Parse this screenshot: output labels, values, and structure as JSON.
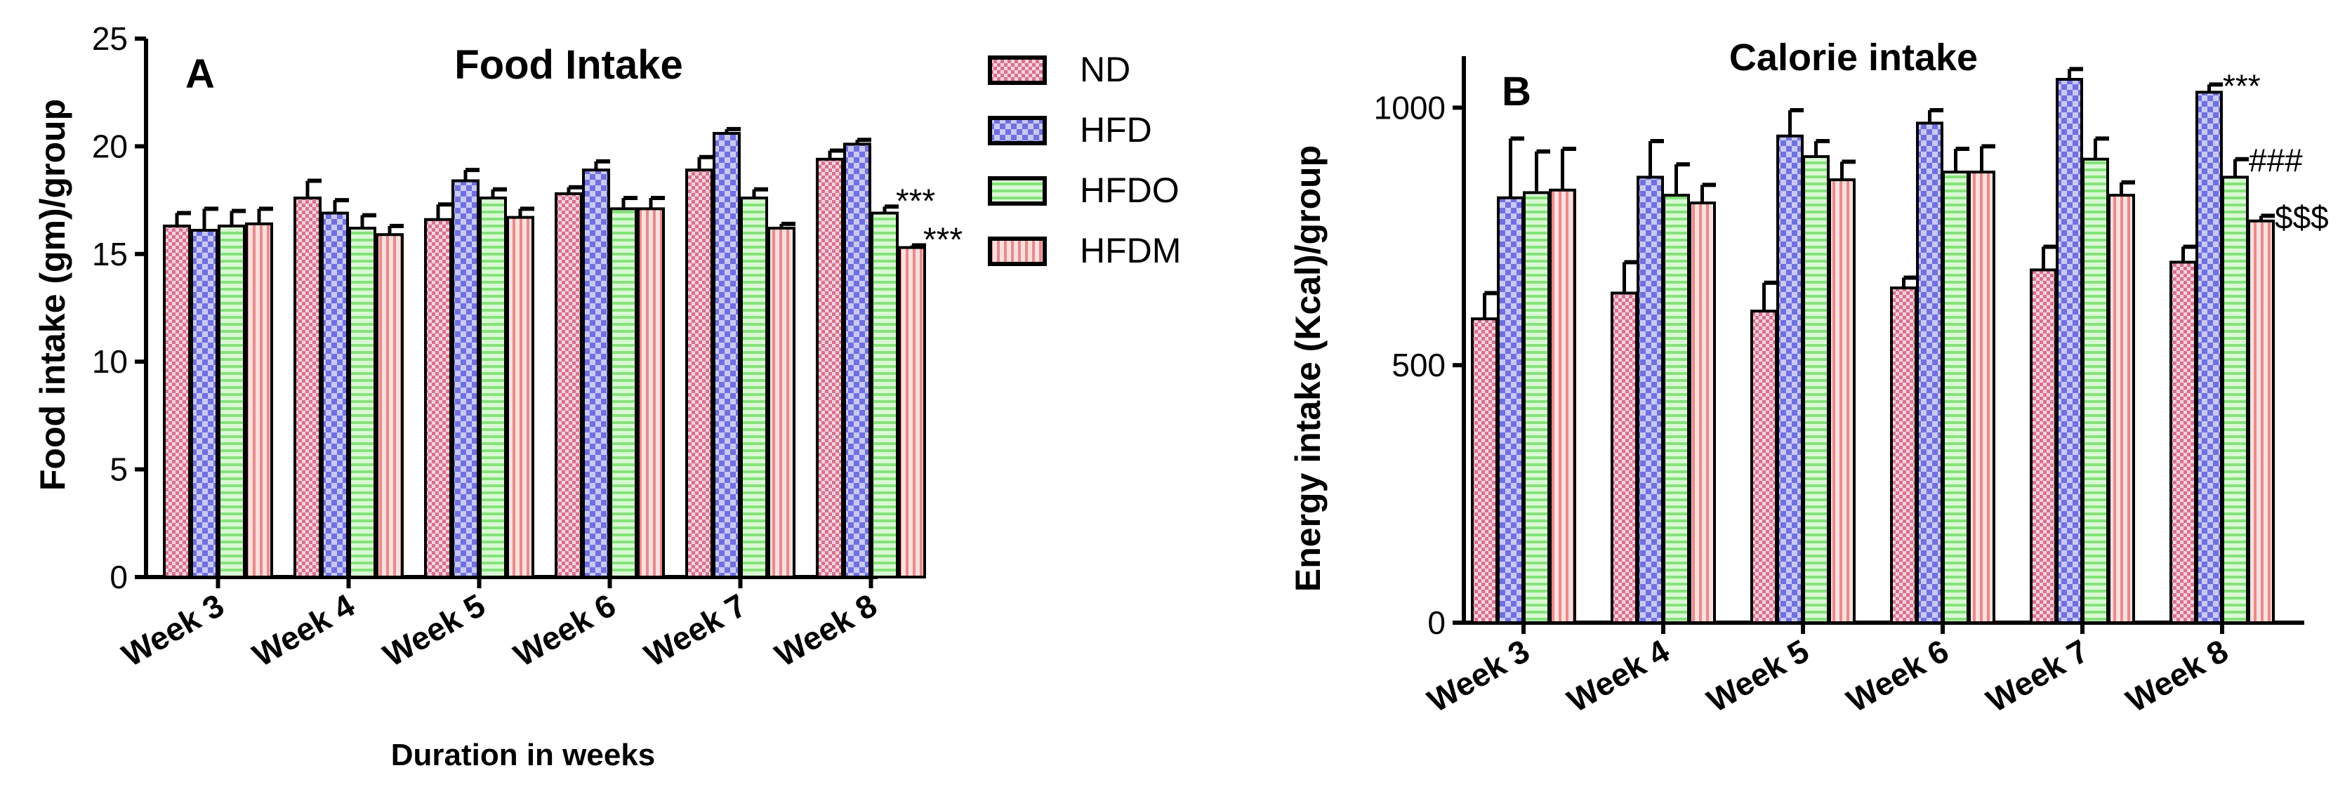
{
  "legend": [
    {
      "name": "ND",
      "pattern": "pat-checker"
    },
    {
      "name": "HFD",
      "pattern": "pat-check-blue"
    },
    {
      "name": "HFDO",
      "pattern": "pat-hstripe"
    },
    {
      "name": "HFDM",
      "pattern": "pat-vstripe"
    }
  ],
  "colors": {
    "ND": "#e8a0b4",
    "HFD": "#8c8cf0",
    "HFDO": "#aaf0a0",
    "HFDM": "#f0a0a0"
  },
  "chart_data": [
    {
      "type": "bar",
      "panel_label": "A",
      "title": "Food Intake",
      "xlabel": "Duration in weeks",
      "ylabel": "Food intake (gm)/group",
      "ylim": [
        0,
        25
      ],
      "yticks": [
        0,
        5,
        10,
        15,
        20,
        25
      ],
      "categories": [
        "Week 3",
        "Week 4",
        "Week 5",
        "Week 6",
        "Week 7",
        "Week 8"
      ],
      "series": [
        {
          "name": "ND",
          "values": [
            16.3,
            17.6,
            16.6,
            17.8,
            18.9,
            19.4
          ],
          "errors": [
            0.6,
            0.8,
            0.7,
            0.3,
            0.6,
            0.4
          ]
        },
        {
          "name": "HFD",
          "values": [
            16.1,
            16.9,
            18.4,
            18.9,
            20.6,
            20.1
          ],
          "errors": [
            1.0,
            0.6,
            0.5,
            0.4,
            0.2,
            0.2
          ]
        },
        {
          "name": "HFDO",
          "values": [
            16.3,
            16.2,
            17.6,
            17.1,
            17.6,
            16.9
          ],
          "errors": [
            0.7,
            0.6,
            0.4,
            0.5,
            0.4,
            0.3
          ]
        },
        {
          "name": "HFDM",
          "values": [
            16.4,
            15.9,
            16.7,
            17.1,
            16.2,
            15.3
          ],
          "errors": [
            0.7,
            0.4,
            0.4,
            0.5,
            0.2,
            0.1
          ]
        }
      ],
      "annotations": [
        {
          "text": "***",
          "category": "Week 8",
          "series": "HFDO"
        },
        {
          "text": "***",
          "category": "Week 8",
          "series": "HFDM"
        }
      ]
    },
    {
      "type": "bar",
      "panel_label": "B",
      "title": "Calorie intake",
      "xlabel": "",
      "ylabel": "Energy intake (Kcal)/group",
      "ylim": [
        0,
        1100
      ],
      "yticks": [
        0,
        500,
        1000
      ],
      "categories": [
        "Week 3",
        "Week 4",
        "Week 5",
        "Week 6",
        "Week 7",
        "Week 8"
      ],
      "series": [
        {
          "name": "ND",
          "values": [
            590,
            640,
            605,
            650,
            685,
            700
          ],
          "errors": [
            50,
            60,
            55,
            20,
            45,
            30
          ]
        },
        {
          "name": "HFD",
          "values": [
            825,
            865,
            945,
            970,
            1055,
            1030
          ],
          "errors": [
            115,
            70,
            50,
            25,
            20,
            15
          ]
        },
        {
          "name": "HFDO",
          "values": [
            835,
            830,
            905,
            875,
            900,
            865
          ],
          "errors": [
            80,
            60,
            30,
            45,
            40,
            35
          ]
        },
        {
          "name": "HFDM",
          "values": [
            840,
            815,
            860,
            875,
            830,
            780
          ],
          "errors": [
            80,
            35,
            35,
            50,
            25,
            10
          ]
        }
      ],
      "annotations": [
        {
          "text": "***",
          "category": "Week 8",
          "series": "HFD"
        },
        {
          "text": "###",
          "category": "Week 8",
          "series": "HFDO"
        },
        {
          "text": "$$$",
          "category": "Week 8",
          "series": "HFDM"
        }
      ]
    }
  ]
}
